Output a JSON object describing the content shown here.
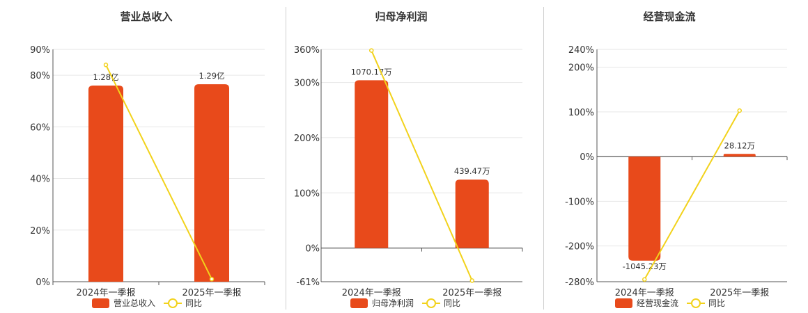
{
  "colors": {
    "bar": "#E84A1B",
    "line": "#F2D21B",
    "grid": "#e6e6e6",
    "axis": "#555555"
  },
  "chart_data": [
    {
      "type": "bar",
      "title": "营业总收入",
      "categories": [
        "2024年一季报",
        "2025年一季报"
      ],
      "series": [
        {
          "name": "营业总收入",
          "kind": "bar",
          "values": [
            76,
            76.5
          ],
          "labels": [
            "1.28亿",
            "1.29亿"
          ]
        },
        {
          "name": "同比",
          "kind": "line",
          "values": [
            84,
            1
          ]
        }
      ],
      "ylim": [
        0,
        90
      ],
      "yticks": [
        0,
        20,
        40,
        60,
        80,
        90
      ],
      "ytick_labels": [
        "0%",
        "20%",
        "40%",
        "60%",
        "80%",
        "90%"
      ],
      "legend": "bottom",
      "grid": true
    },
    {
      "type": "bar",
      "title": "归母净利润",
      "categories": [
        "2024年一季报",
        "2025年一季报"
      ],
      "series": [
        {
          "name": "归母净利润",
          "kind": "bar",
          "values": [
            304,
            124
          ],
          "labels": [
            "1070.17万",
            "439.47万"
          ]
        },
        {
          "name": "同比",
          "kind": "line",
          "values": [
            358,
            -59
          ]
        }
      ],
      "ylim": [
        -61,
        360
      ],
      "yticks": [
        -61,
        0,
        100,
        200,
        300,
        360
      ],
      "ytick_labels": [
        "-61%",
        "0%",
        "100%",
        "200%",
        "300%",
        "360%"
      ],
      "legend": "bottom",
      "grid": true
    },
    {
      "type": "bar",
      "title": "经营现金流",
      "categories": [
        "2024年一季报",
        "2025年一季报"
      ],
      "series": [
        {
          "name": "经营现金流",
          "kind": "bar",
          "values": [
            -233,
            6
          ],
          "labels": [
            "-1045.23万",
            "28.12万"
          ]
        },
        {
          "name": "同比",
          "kind": "line",
          "values": [
            -275,
            103
          ]
        }
      ],
      "ylim": [
        -280,
        240
      ],
      "yticks": [
        -280,
        -200,
        -100,
        0,
        100,
        200,
        240
      ],
      "ytick_labels": [
        "-280%",
        "-200%",
        "-100%",
        "0%",
        "100%",
        "200%",
        "240%"
      ],
      "legend": "bottom",
      "grid": true
    }
  ]
}
